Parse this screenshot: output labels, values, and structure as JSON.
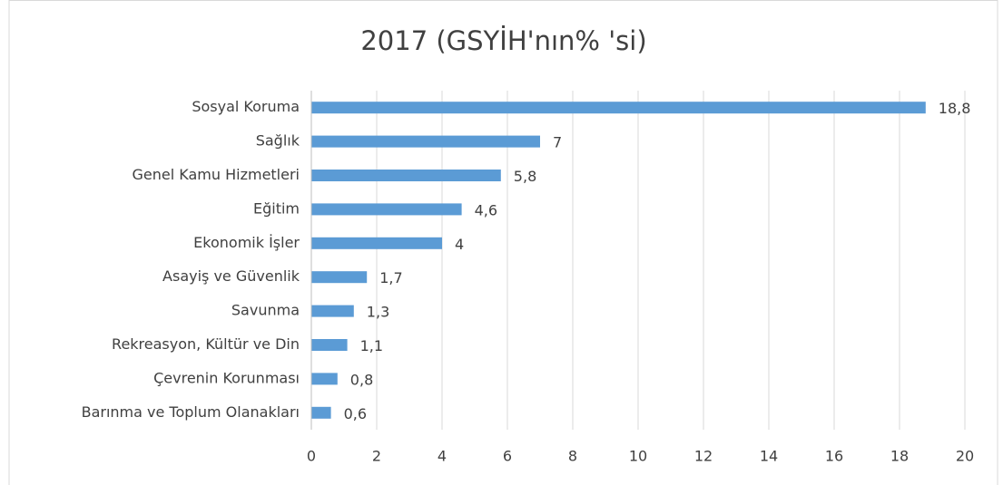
{
  "chart_data": {
    "type": "bar",
    "orientation": "horizontal",
    "title": "2017 (GSYİH'nın% 'si)",
    "categories": [
      "Sosyal Koruma",
      "Sağlık",
      "Genel Kamu Hizmetleri",
      "Eğitim",
      "Ekonomik İşler",
      "Asayiş ve Güvenlik",
      "Savunma",
      "Rekreasyon, Kültür ve Din",
      "Çevrenin Korunması",
      "Barınma ve Toplum Olanakları"
    ],
    "values": [
      18.8,
      7,
      5.8,
      4.6,
      4,
      1.7,
      1.3,
      1.1,
      0.8,
      0.6
    ],
    "value_labels": [
      "18,8",
      "7",
      "5,8",
      "4,6",
      "4",
      "1,7",
      "1,3",
      "1,1",
      "0,8",
      "0,6"
    ],
    "color": "#5b9bd5",
    "xlim": [
      0,
      20
    ],
    "xticks": [
      0,
      2,
      4,
      6,
      8,
      10,
      12,
      14,
      16,
      18,
      20
    ],
    "grid": true
  }
}
